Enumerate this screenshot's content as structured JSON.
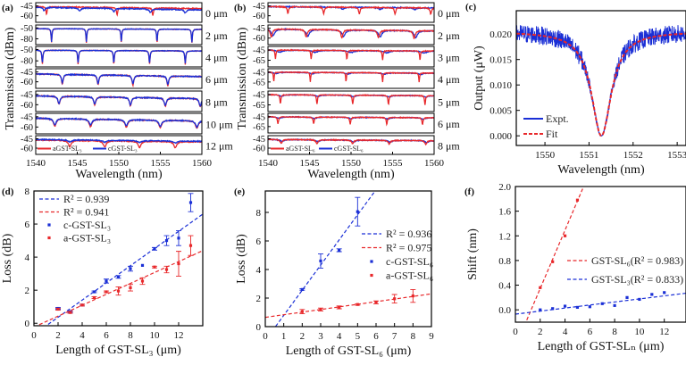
{
  "chart_data": [
    {
      "id": "a",
      "type": "line",
      "panel_label": "(a)",
      "xlabel": "Wavelength (nm)",
      "ylabel": "Transmission (dBm)",
      "xlim": [
        1540,
        1560
      ],
      "xticks": [
        "1540",
        "1545",
        "1550",
        "1555",
        "1560"
      ],
      "colors": {
        "a": "#e8282b",
        "c": "#1a2fd6"
      },
      "legend": [
        {
          "key": "a",
          "label": "aGST-SL₃"
        },
        {
          "key": "c",
          "label": "cGST-SL₃"
        }
      ],
      "strips": [
        {
          "label": "0 μm",
          "ylim": [
            -70,
            -40
          ],
          "yticks": [
            "-45",
            "-60"
          ],
          "a": {
            "base": -46,
            "slope": -0.15,
            "dips": [
              1541.3,
              1549.8,
              1554.1
            ],
            "depth": 12,
            "width": 0.08
          },
          "c": {
            "base": -47,
            "slope": -0.2,
            "dips": [
              1541.0,
              1545.3,
              1549.4,
              1553.8,
              1558.0
            ],
            "depth": 5,
            "width": 0.15
          }
        },
        {
          "label": "2 μm",
          "ylim": [
            -96,
            -42
          ],
          "yticks": [
            "-50",
            "-80"
          ],
          "a": {
            "base": -52,
            "slope": -0.1,
            "dips": [
              1541.9,
              1546.1,
              1550.3,
              1554.6,
              1558.8
            ],
            "depth": 38,
            "width": 0.06
          },
          "c": {
            "base": -52,
            "slope": -0.1,
            "dips": [
              1541.9,
              1546.1,
              1550.3,
              1554.6,
              1558.8
            ],
            "depth": 36,
            "width": 0.06
          }
        },
        {
          "label": "4 μm",
          "ylim": [
            -96,
            -42
          ],
          "yticks": [
            "-50",
            "-80"
          ],
          "a": {
            "base": -52,
            "slope": -0.1,
            "dips": [
              1540.8,
              1545.1,
              1549.4,
              1553.7,
              1558.0
            ],
            "depth": 36,
            "width": 0.07
          },
          "c": {
            "base": -52,
            "slope": -0.1,
            "dips": [
              1540.8,
              1545.1,
              1549.4,
              1553.7,
              1558.0
            ],
            "depth": 33,
            "width": 0.07
          }
        },
        {
          "label": "6 μm",
          "ylim": [
            -70,
            -40
          ],
          "yticks": [
            "-45",
            "-60"
          ],
          "a": {
            "base": -48,
            "slope": -0.2,
            "dips": [
              1543.2,
              1547.5,
              1551.7,
              1555.9
            ],
            "depth": 15,
            "width": 0.12
          },
          "c": {
            "base": -48,
            "slope": -0.2,
            "dips": [
              1543.2,
              1547.5,
              1551.7,
              1555.9
            ],
            "depth": 13,
            "width": 0.12
          }
        },
        {
          "label": "8 μm",
          "ylim": [
            -70,
            -40
          ],
          "yticks": [
            "-45",
            "-60"
          ],
          "a": {
            "base": -47,
            "slope": -0.2,
            "dips": [
              1542.8,
              1547.1,
              1551.4,
              1555.6,
              1559.8
            ],
            "depth": 12,
            "width": 0.15
          },
          "c": {
            "base": -47,
            "slope": -0.2,
            "dips": [
              1542.8,
              1547.1,
              1551.4,
              1555.6,
              1559.8
            ],
            "depth": 11,
            "width": 0.15
          }
        },
        {
          "label": "10 μm",
          "ylim": [
            -70,
            -40
          ],
          "yticks": [
            "-45",
            "-60"
          ],
          "a": {
            "base": -47,
            "slope": -0.2,
            "dips": [
              1542.3,
              1546.6,
              1550.9,
              1555.0,
              1559.4
            ],
            "depth": 11,
            "width": 0.2
          },
          "c": {
            "base": -47,
            "slope": -0.2,
            "dips": [
              1542.3,
              1546.6,
              1550.9,
              1555.0,
              1559.4
            ],
            "depth": 9,
            "width": 0.2
          }
        },
        {
          "label": "12 μm",
          "ylim": [
            -70,
            -40
          ],
          "yticks": [
            "-45",
            "-60"
          ],
          "a": {
            "base": -47,
            "slope": -0.15,
            "dips": [
              1544.1,
              1548.3,
              1552.5,
              1556.8
            ],
            "depth": 10,
            "width": 0.2
          },
          "c": {
            "base": -46,
            "slope": -0.15,
            "dips": [
              1544.1,
              1548.3,
              1552.5,
              1556.8
            ],
            "depth": 3,
            "width": 0.3
          }
        }
      ]
    },
    {
      "id": "b",
      "type": "line",
      "panel_label": "(b)",
      "xlabel": "Wavelength (nm)",
      "ylabel": "Transmission (dBm)",
      "xlim": [
        1540,
        1560
      ],
      "xticks": [
        "1540",
        "1545",
        "1550",
        "1555",
        "1560"
      ],
      "colors": {
        "a": "#e8282b",
        "c": "#1a2fd6"
      },
      "legend": [
        {
          "key": "a",
          "label": "aGST-SL₆"
        },
        {
          "key": "c",
          "label": "cGST-SL₆"
        }
      ],
      "strips": [
        {
          "label": "0 μm",
          "ylim": [
            -70,
            -40
          ],
          "yticks": [
            "-45",
            "-60"
          ],
          "a": {
            "base": -46,
            "slope": -0.1,
            "dips": [
              1542.4,
              1546.7,
              1551.0,
              1555.3,
              1559.6
            ],
            "depth": 10,
            "width": 0.1
          },
          "c": {
            "base": -46,
            "slope": -0.1,
            "dips": [
              1549.0,
              1553.5,
              1557.7
            ],
            "depth": 3,
            "width": 0.2
          }
        },
        {
          "label": "2 μm",
          "ylim": [
            -70,
            -40
          ],
          "yticks": [
            "-45",
            "-60"
          ],
          "a": {
            "base": -46,
            "slope": -0.15,
            "dips": [
              1540.4,
              1544.6,
              1548.9,
              1553.3,
              1557.6
            ],
            "depth": 12,
            "width": 0.15
          },
          "c": {
            "base": -46,
            "slope": -0.15,
            "dips": [
              1540.6,
              1544.8,
              1549.1,
              1553.5,
              1557.8
            ],
            "depth": 10,
            "width": 0.25
          }
        },
        {
          "label": "3 μm",
          "ylim": [
            -78,
            -38
          ],
          "yticks": [
            "-45",
            "-65"
          ],
          "a": {
            "base": -45,
            "slope": -0.1,
            "dips": [
              1540.9,
              1545.2,
              1549.5,
              1553.8,
              1558.3
            ],
            "depth": 18,
            "width": 0.06
          },
          "c": {
            "base": -45,
            "slope": -0.1,
            "dips": [
              1541.4,
              1545.7,
              1550.0,
              1554.3,
              1558.8
            ],
            "depth": 4,
            "width": 0.4
          }
        },
        {
          "label": "4 μm",
          "ylim": [
            -78,
            -38
          ],
          "yticks": [
            "-45",
            "-65"
          ],
          "a": {
            "base": -45,
            "slope": -0.1,
            "dips": [
              1540.7,
              1545.1,
              1549.4,
              1553.8,
              1558.2
            ],
            "depth": 20,
            "width": 0.05
          },
          "c": {
            "base": -45,
            "slope": -0.1,
            "dips": [
              1540.9,
              1545.3,
              1549.6,
              1554.0,
              1558.4
            ],
            "depth": 3,
            "width": 0.3
          }
        },
        {
          "label": "5 μm",
          "ylim": [
            -78,
            -38
          ],
          "yticks": [
            "-45",
            "-65"
          ],
          "a": {
            "base": -45,
            "slope": -0.1,
            "dips": [
              1541.5,
              1545.9,
              1550.2,
              1554.5,
              1558.9
            ],
            "depth": 18,
            "width": 0.07
          },
          "c": {
            "base": -45,
            "slope": -0.1,
            "dips": [
              1541.6,
              1546.0,
              1550.3,
              1554.6,
              1559.0
            ],
            "depth": 3,
            "width": 0.3
          }
        },
        {
          "label": "6 μm",
          "ylim": [
            -78,
            -38
          ],
          "yticks": [
            "-45",
            "-65"
          ],
          "a": {
            "base": -45,
            "slope": -0.1,
            "dips": [
              1541.2,
              1545.5,
              1549.9,
              1554.3,
              1558.6
            ],
            "depth": 14,
            "width": 0.08
          },
          "c": {
            "base": -45,
            "slope": -0.1,
            "dips": [
              1541.3,
              1545.6,
              1550.0,
              1554.4,
              1558.7
            ],
            "depth": 3,
            "width": 0.3
          }
        },
        {
          "label": "8 μm",
          "ylim": [
            -70,
            -40
          ],
          "yticks": [
            "-45",
            "-60"
          ],
          "a": {
            "base": -46,
            "slope": -0.1,
            "dips": [
              1541.6,
              1545.9,
              1550.2,
              1554.6,
              1559.0
            ],
            "depth": 6,
            "width": 0.15
          },
          "c": {
            "base": -46,
            "slope": -0.1,
            "dips": [
              1541.7,
              1546.0,
              1550.3,
              1554.7,
              1559.1
            ],
            "depth": 3,
            "width": 0.25
          }
        }
      ]
    },
    {
      "id": "c",
      "type": "line",
      "panel_label": "(c)",
      "xlabel": "Wavelength (nm)",
      "ylabel": "Output (μW)",
      "xlim": [
        1549.35,
        1553.2
      ],
      "ylim": [
        -0.0019,
        0.0246
      ],
      "xticks": [
        "1550",
        "1551",
        "1552",
        "1553"
      ],
      "yticks": [
        "0.000",
        "0.005",
        "0.010",
        "0.015",
        "0.020"
      ],
      "resonance": {
        "center": 1551.28,
        "baseline": 0.0205,
        "fwhm": 0.55,
        "min": 0.0
      },
      "series": [
        {
          "name": "Expt.",
          "color": "#1a2fd6",
          "style": "solid",
          "noise": 0.0018
        },
        {
          "name": "Fit",
          "color": "#e8282b",
          "style": "dashed",
          "noise": 0
        }
      ]
    },
    {
      "id": "d",
      "type": "scatter",
      "panel_label": "(d)",
      "xlabel": "Length of GST-SL₃ (μm)",
      "ylabel": "Loss (dB)",
      "xlim": [
        0,
        14
      ],
      "ylim": [
        -0.15,
        8
      ],
      "xticks": [
        "0",
        "2",
        "4",
        "6",
        "8",
        "10",
        "12"
      ],
      "yticks": [
        "0",
        "2",
        "4",
        "6",
        "8"
      ],
      "series": [
        {
          "name": "c-GST-SL₃",
          "color": "#1a2fd6",
          "x": [
            2,
            3,
            4,
            5,
            6,
            7,
            8,
            9,
            10,
            11,
            12,
            13
          ],
          "y": [
            0.9,
            0.7,
            1.1,
            1.9,
            2.55,
            2.8,
            3.3,
            3.5,
            4.5,
            5.0,
            5.15,
            7.3
          ],
          "err": [
            0.05,
            0.05,
            0.05,
            0.05,
            0.12,
            0.08,
            0.15,
            0.03,
            0.08,
            0.3,
            0.45,
            0.55
          ],
          "fit": {
            "label": "R² = 0.939",
            "slope": 0.52,
            "intercept": -0.68
          }
        },
        {
          "name": "a-GST-SL₃",
          "color": "#e8282b",
          "x": [
            2,
            3,
            4,
            5,
            6,
            7,
            8,
            9,
            10,
            11,
            12,
            13
          ],
          "y": [
            0.85,
            0.65,
            1.1,
            1.55,
            1.9,
            1.95,
            2.15,
            2.55,
            3.4,
            3.25,
            3.6,
            4.7
          ],
          "err": [
            0.05,
            0.05,
            0.05,
            0.05,
            0.05,
            0.25,
            0.2,
            0.2,
            0.05,
            0.2,
            0.75,
            0.6
          ],
          "fit": {
            "label": "R² = 0.941",
            "slope": 0.33,
            "intercept": -0.23
          }
        }
      ]
    },
    {
      "id": "e",
      "type": "scatter",
      "panel_label": "(e)",
      "xlabel": "Length of GST-SL₆ (μm)",
      "ylabel": "Loss (dB)",
      "xlim": [
        0,
        9
      ],
      "ylim": [
        0,
        9.5
      ],
      "xticks": [
        "0",
        "1",
        "2",
        "3",
        "4",
        "5",
        "6",
        "7",
        "8",
        "9"
      ],
      "yticks": [
        "0",
        "2",
        "4",
        "6",
        "8"
      ],
      "series": [
        {
          "name": "c-GST-SL₆",
          "color": "#1a2fd6",
          "x": [
            2,
            3,
            4,
            5
          ],
          "y": [
            2.6,
            4.6,
            5.35,
            8.05
          ],
          "err": [
            0.05,
            0.5,
            0.1,
            1.0
          ],
          "fit": {
            "label": "R² = 0.936",
            "slope": 1.76,
            "intercept": -0.97
          }
        },
        {
          "name": "a-GST-SL₆",
          "color": "#e8282b",
          "x": [
            2,
            3,
            4,
            5,
            6,
            7,
            8
          ],
          "y": [
            1.05,
            1.2,
            1.35,
            1.55,
            1.7,
            1.95,
            2.15
          ],
          "err": [
            0.15,
            0.1,
            0.1,
            0.05,
            0.1,
            0.3,
            0.45
          ],
          "fit": {
            "label": "R² = 0.975",
            "slope": 0.183,
            "intercept": 0.65
          }
        }
      ]
    },
    {
      "id": "f",
      "type": "scatter",
      "panel_label": "(f)",
      "xlabel": "Length of GST-SLₙ (μm)",
      "ylabel": "Shift (nm)",
      "xlim": [
        0,
        13.75
      ],
      "ylim": [
        -0.2,
        2.0
      ],
      "xticks": [
        "0",
        "2",
        "4",
        "6",
        "8",
        "10",
        "12"
      ],
      "yticks": [
        "0.0",
        "0.4",
        "0.8",
        "1.2",
        "1.6",
        "2.0"
      ],
      "series": [
        {
          "name": "GST-SL₆",
          "color": "#e8282b",
          "x": [
            2,
            3,
            4,
            5
          ],
          "y": [
            0.36,
            0.78,
            1.2,
            1.78
          ],
          "err": [
            0.03,
            0.03,
            0.03,
            0.03
          ],
          "fit": {
            "label": "GST-SL₆(R² = 0.983)",
            "slope": 0.473,
            "intercept": -0.6
          }
        },
        {
          "name": "GST-SL₃",
          "color": "#1a2fd6",
          "x": [
            2,
            3,
            4,
            5,
            6,
            7,
            8,
            9,
            10,
            11,
            12
          ],
          "y": [
            0.0,
            0.02,
            0.06,
            0.04,
            0.05,
            0.1,
            0.07,
            0.2,
            0.17,
            0.25,
            0.28
          ],
          "err": [
            0.02,
            0.02,
            0.02,
            0.02,
            0.02,
            0.02,
            0.02,
            0.02,
            0.02,
            0.02,
            0.02
          ],
          "fit": {
            "label": "GST-SL₃(R² = 0.833)",
            "slope": 0.0247,
            "intercept": -0.07
          }
        }
      ]
    }
  ]
}
